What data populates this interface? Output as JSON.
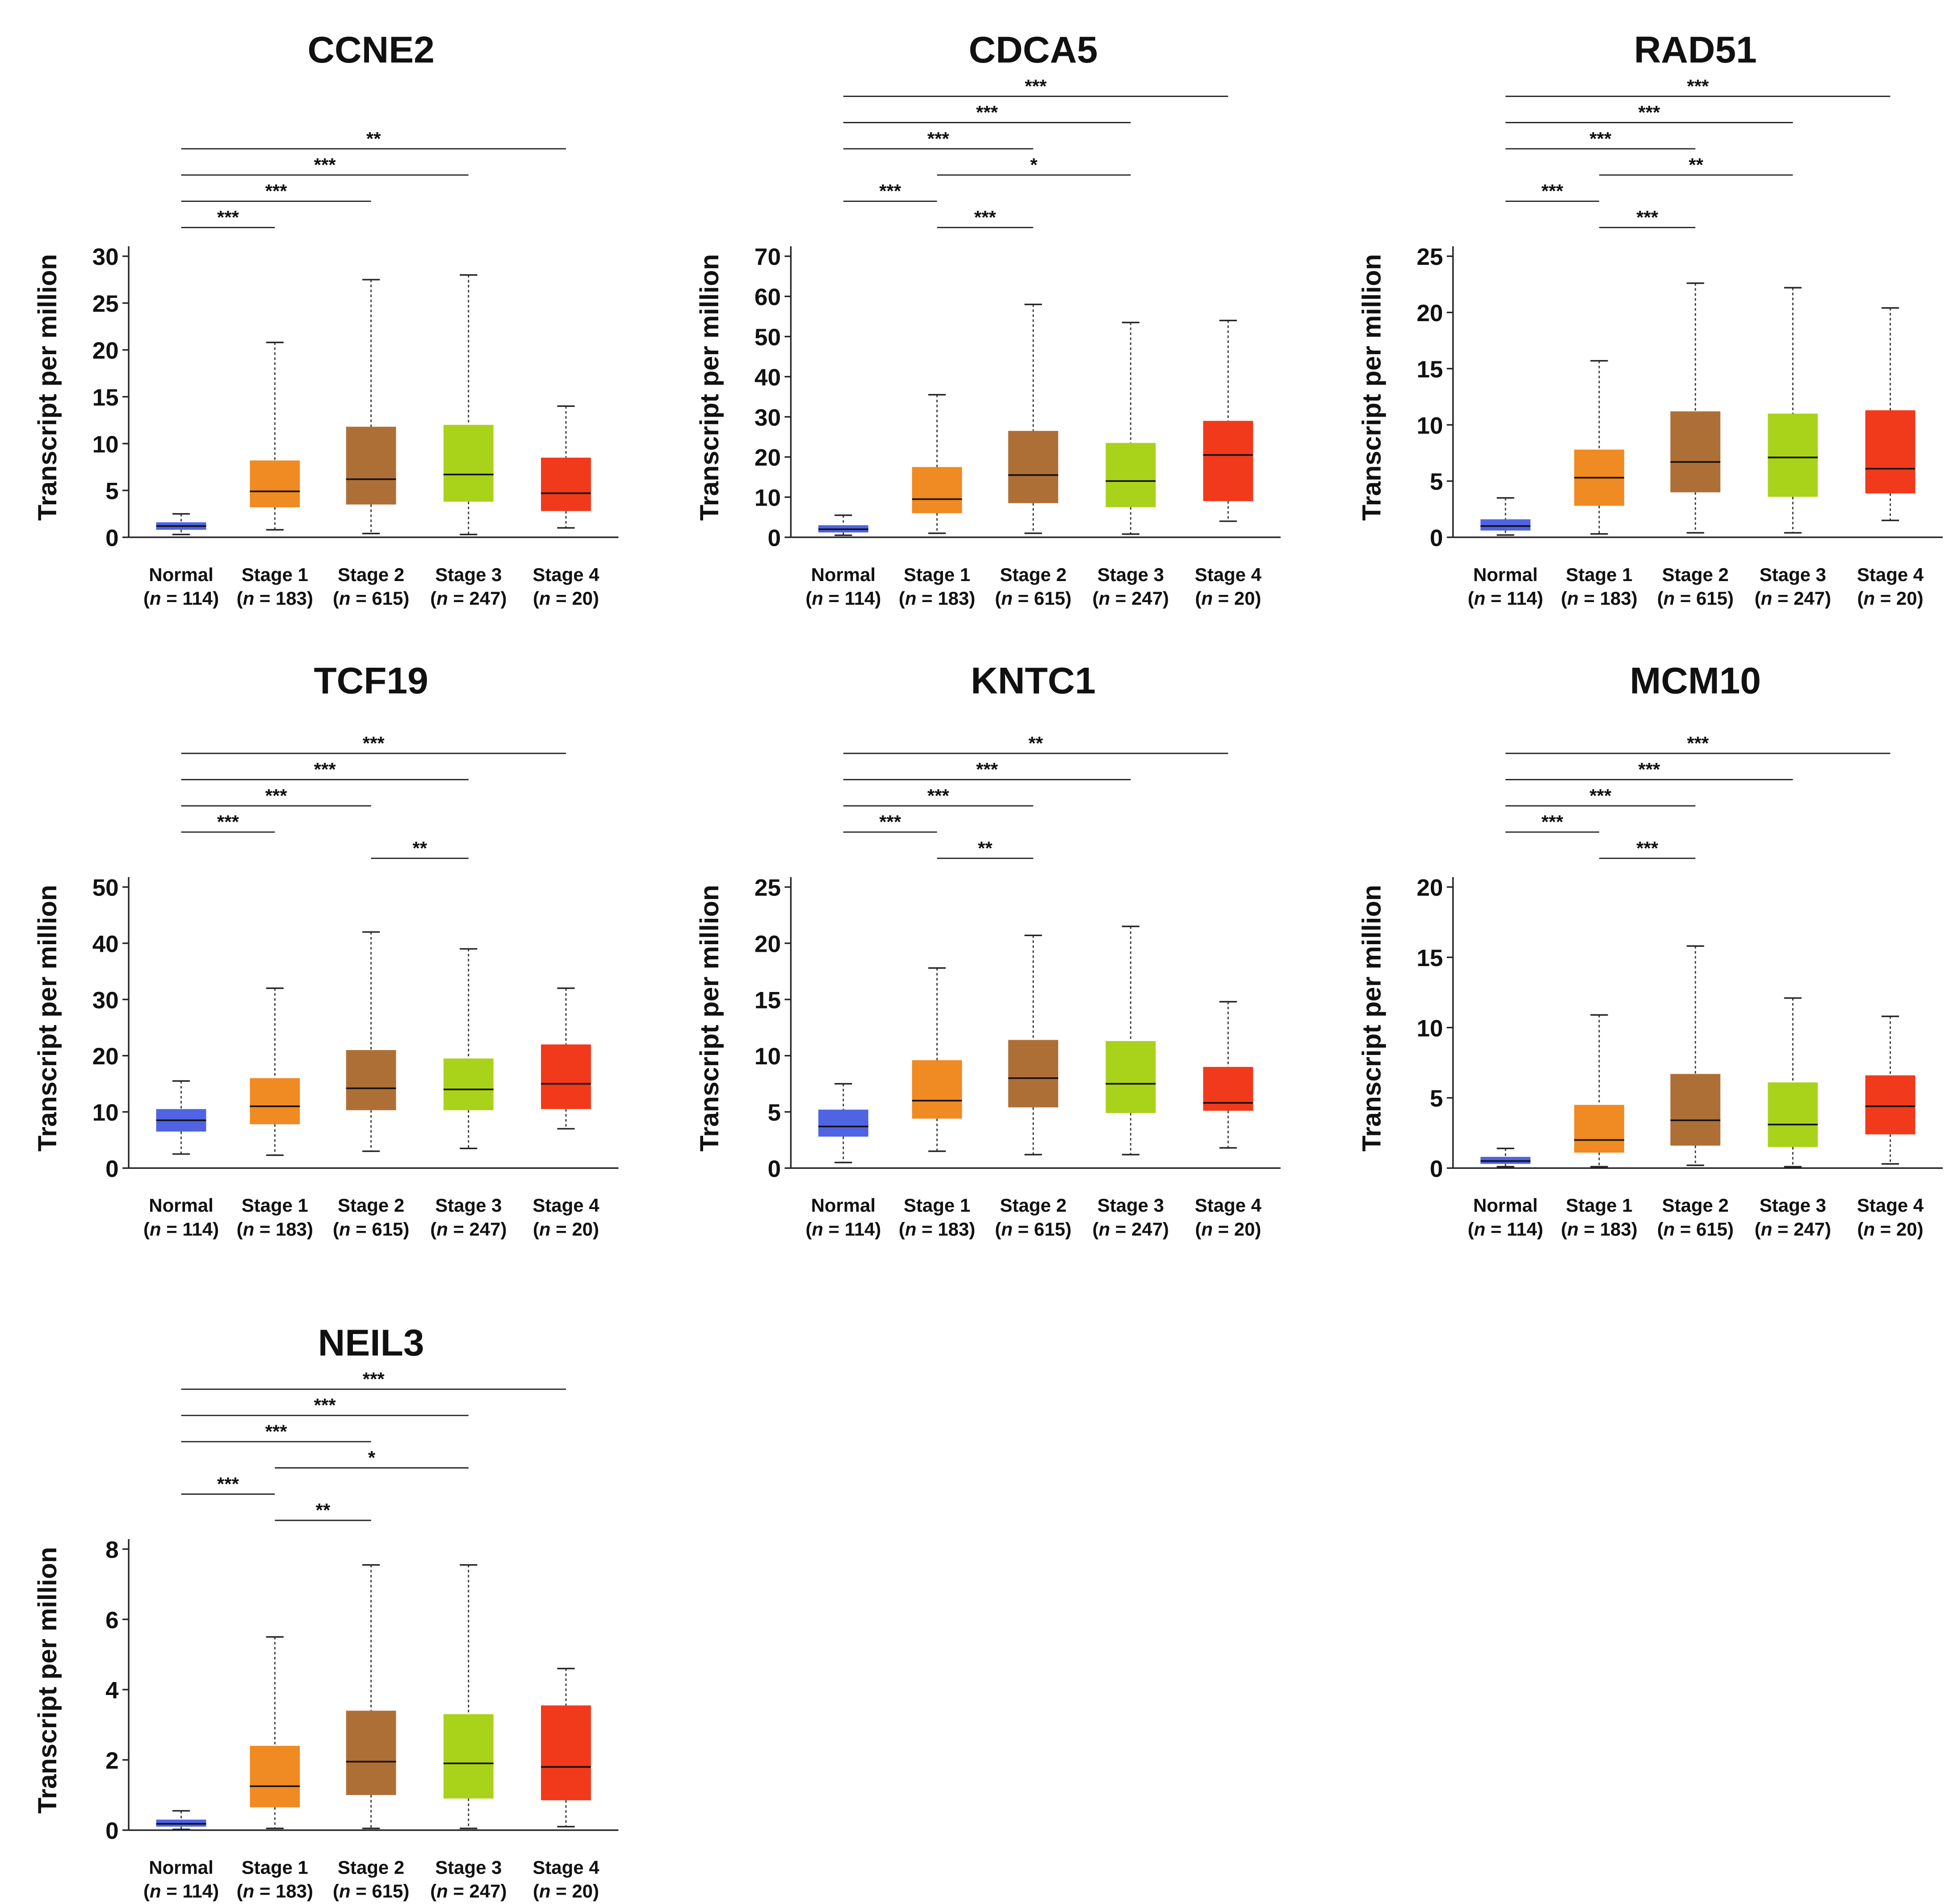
{
  "colors": {
    "Normal": "#4f63e3",
    "Stage 1": "#f08a22",
    "Stage 2": "#ae6f36",
    "Stage 3": "#a9d21b",
    "Stage 4": "#f03a1b"
  },
  "chart_data": [
    {
      "type": "box",
      "title": "CCNE2",
      "ylabel": "Transcript per million",
      "ylim": [
        0,
        30
      ],
      "yticks": [
        0,
        5,
        10,
        15,
        20,
        25,
        30
      ],
      "categories": [
        "Normal",
        "Stage 1",
        "Stage 2",
        "Stage 3",
        "Stage 4"
      ],
      "n": [
        114,
        183,
        615,
        247,
        20
      ],
      "boxes": [
        [
          0.3,
          0.8,
          1.2,
          1.6,
          2.5
        ],
        [
          0.8,
          3.2,
          4.9,
          8.2,
          20.8
        ],
        [
          0.4,
          3.5,
          6.2,
          11.8,
          27.5
        ],
        [
          0.3,
          3.8,
          6.7,
          12.0,
          28.0
        ],
        [
          1.0,
          2.8,
          4.7,
          8.5,
          14.0
        ]
      ],
      "significance": [
        {
          "from": "Normal",
          "to": "Stage 1",
          "label": "***"
        },
        {
          "from": "Normal",
          "to": "Stage 2",
          "label": "***"
        },
        {
          "from": "Normal",
          "to": "Stage 3",
          "label": "***"
        },
        {
          "from": "Normal",
          "to": "Stage 4",
          "label": "**"
        }
      ]
    },
    {
      "type": "box",
      "title": "CDCA5",
      "ylabel": "Transcript per million",
      "ylim": [
        0,
        70
      ],
      "yticks": [
        0,
        10,
        20,
        30,
        40,
        50,
        60,
        70
      ],
      "categories": [
        "Normal",
        "Stage 1",
        "Stage 2",
        "Stage 3",
        "Stage 4"
      ],
      "n": [
        114,
        183,
        615,
        247,
        20
      ],
      "boxes": [
        [
          0.5,
          1.2,
          2,
          3,
          5.5
        ],
        [
          1,
          6,
          9.5,
          17.5,
          35.5
        ],
        [
          1,
          8.5,
          15.5,
          26.5,
          58
        ],
        [
          0.8,
          7.5,
          14,
          23.5,
          53.5
        ],
        [
          4,
          9,
          20.5,
          29,
          54
        ]
      ],
      "significance": [
        {
          "from": "Stage 1",
          "to": "Stage 2",
          "label": "***"
        },
        {
          "from": "Normal",
          "to": "Stage 1",
          "label": "***"
        },
        {
          "from": "Stage 1",
          "to": "Stage 3",
          "label": "*"
        },
        {
          "from": "Normal",
          "to": "Stage 2",
          "label": "***"
        },
        {
          "from": "Normal",
          "to": "Stage 3",
          "label": "***"
        },
        {
          "from": "Normal",
          "to": "Stage 4",
          "label": "***"
        }
      ]
    },
    {
      "type": "box",
      "title": "RAD51",
      "ylabel": "Transcript per million",
      "ylim": [
        0,
        25
      ],
      "yticks": [
        0,
        5,
        10,
        15,
        20,
        25
      ],
      "categories": [
        "Normal",
        "Stage 1",
        "Stage 2",
        "Stage 3",
        "Stage 4"
      ],
      "n": [
        114,
        183,
        615,
        247,
        20
      ],
      "boxes": [
        [
          0.2,
          0.6,
          1.0,
          1.6,
          3.5
        ],
        [
          0.3,
          2.8,
          5.3,
          7.8,
          15.7
        ],
        [
          0.4,
          4.0,
          6.7,
          11.2,
          22.6
        ],
        [
          0.4,
          3.6,
          7.1,
          11.0,
          22.2
        ],
        [
          1.5,
          3.9,
          6.1,
          11.3,
          20.4
        ]
      ],
      "significance": [
        {
          "from": "Stage 1",
          "to": "Stage 2",
          "label": "***"
        },
        {
          "from": "Normal",
          "to": "Stage 1",
          "label": "***"
        },
        {
          "from": "Stage 1",
          "to": "Stage 3",
          "label": "**"
        },
        {
          "from": "Normal",
          "to": "Stage 2",
          "label": "***"
        },
        {
          "from": "Normal",
          "to": "Stage 3",
          "label": "***"
        },
        {
          "from": "Normal",
          "to": "Stage 4",
          "label": "***"
        }
      ]
    },
    {
      "type": "box",
      "title": "TCF19",
      "ylabel": "Transcript per million",
      "ylim": [
        0,
        50
      ],
      "yticks": [
        0,
        10,
        20,
        30,
        40,
        50
      ],
      "categories": [
        "Normal",
        "Stage 1",
        "Stage 2",
        "Stage 3",
        "Stage 4"
      ],
      "n": [
        114,
        183,
        615,
        247,
        20
      ],
      "boxes": [
        [
          2.5,
          6.5,
          8.5,
          10.5,
          15.5
        ],
        [
          2.3,
          7.8,
          11,
          16,
          32
        ],
        [
          3,
          10.3,
          14.2,
          21,
          42
        ],
        [
          3.5,
          10.3,
          14,
          19.5,
          39
        ],
        [
          7,
          10.5,
          15,
          22,
          32
        ]
      ],
      "significance": [
        {
          "from": "Stage 2",
          "to": "Stage 3",
          "label": "**"
        },
        {
          "from": "Normal",
          "to": "Stage 1",
          "label": "***"
        },
        {
          "from": "Normal",
          "to": "Stage 2",
          "label": "***"
        },
        {
          "from": "Normal",
          "to": "Stage 3",
          "label": "***"
        },
        {
          "from": "Normal",
          "to": "Stage 4",
          "label": "***"
        }
      ]
    },
    {
      "type": "box",
      "title": "KNTC1",
      "ylabel": "Transcript per million",
      "ylim": [
        0,
        25
      ],
      "yticks": [
        0,
        5,
        10,
        15,
        20,
        25
      ],
      "categories": [
        "Normal",
        "Stage 1",
        "Stage 2",
        "Stage 3",
        "Stage 4"
      ],
      "n": [
        114,
        183,
        615,
        247,
        20
      ],
      "boxes": [
        [
          0.5,
          2.8,
          3.7,
          5.2,
          7.5
        ],
        [
          1.5,
          4.4,
          6,
          9.6,
          17.8
        ],
        [
          1.2,
          5.4,
          8,
          11.4,
          20.7
        ],
        [
          1.2,
          4.9,
          7.5,
          11.3,
          21.5
        ],
        [
          1.8,
          5.1,
          5.8,
          9,
          14.8
        ]
      ],
      "significance": [
        {
          "from": "Stage 1",
          "to": "Stage 2",
          "label": "**"
        },
        {
          "from": "Normal",
          "to": "Stage 1",
          "label": "***"
        },
        {
          "from": "Normal",
          "to": "Stage 2",
          "label": "***"
        },
        {
          "from": "Normal",
          "to": "Stage 3",
          "label": "***"
        },
        {
          "from": "Normal",
          "to": "Stage 4",
          "label": "**"
        }
      ]
    },
    {
      "type": "box",
      "title": "MCM10",
      "ylabel": "Transcript per million",
      "ylim": [
        0,
        20
      ],
      "yticks": [
        0,
        5,
        10,
        15,
        20
      ],
      "categories": [
        "Normal",
        "Stage 1",
        "Stage 2",
        "Stage 3",
        "Stage 4"
      ],
      "n": [
        114,
        183,
        615,
        247,
        20
      ],
      "boxes": [
        [
          0.1,
          0.3,
          0.5,
          0.8,
          1.4
        ],
        [
          0.1,
          1.1,
          2.0,
          4.5,
          10.9
        ],
        [
          0.2,
          1.6,
          3.4,
          6.7,
          15.8
        ],
        [
          0.1,
          1.5,
          3.1,
          6.1,
          12.1
        ],
        [
          0.3,
          2.4,
          4.4,
          6.6,
          10.8
        ]
      ],
      "significance": [
        {
          "from": "Stage 1",
          "to": "Stage 2",
          "label": "***"
        },
        {
          "from": "Normal",
          "to": "Stage 1",
          "label": "***"
        },
        {
          "from": "Normal",
          "to": "Stage 2",
          "label": "***"
        },
        {
          "from": "Normal",
          "to": "Stage 3",
          "label": "***"
        },
        {
          "from": "Normal",
          "to": "Stage 4",
          "label": "***"
        }
      ]
    },
    {
      "type": "box",
      "title": "NEIL3",
      "ylabel": "Transcript per million",
      "ylim": [
        0,
        8
      ],
      "yticks": [
        0,
        2,
        4,
        6,
        8
      ],
      "categories": [
        "Normal",
        "Stage 1",
        "Stage 2",
        "Stage 3",
        "Stage 4"
      ],
      "n": [
        114,
        183,
        615,
        247,
        20
      ],
      "boxes": [
        [
          0.02,
          0.1,
          0.18,
          0.3,
          0.55
        ],
        [
          0.05,
          0.65,
          1.25,
          2.4,
          5.5
        ],
        [
          0.05,
          1.0,
          1.95,
          3.4,
          7.55
        ],
        [
          0.05,
          0.9,
          1.9,
          3.3,
          7.55
        ],
        [
          0.1,
          0.85,
          1.8,
          3.55,
          4.6
        ]
      ],
      "significance": [
        {
          "from": "Stage 1",
          "to": "Stage 2",
          "label": "**"
        },
        {
          "from": "Normal",
          "to": "Stage 1",
          "label": "***"
        },
        {
          "from": "Stage 1",
          "to": "Stage 3",
          "label": "*"
        },
        {
          "from": "Normal",
          "to": "Stage 2",
          "label": "***"
        },
        {
          "from": "Normal",
          "to": "Stage 3",
          "label": "***"
        },
        {
          "from": "Normal",
          "to": "Stage 4",
          "label": "***"
        }
      ]
    }
  ]
}
